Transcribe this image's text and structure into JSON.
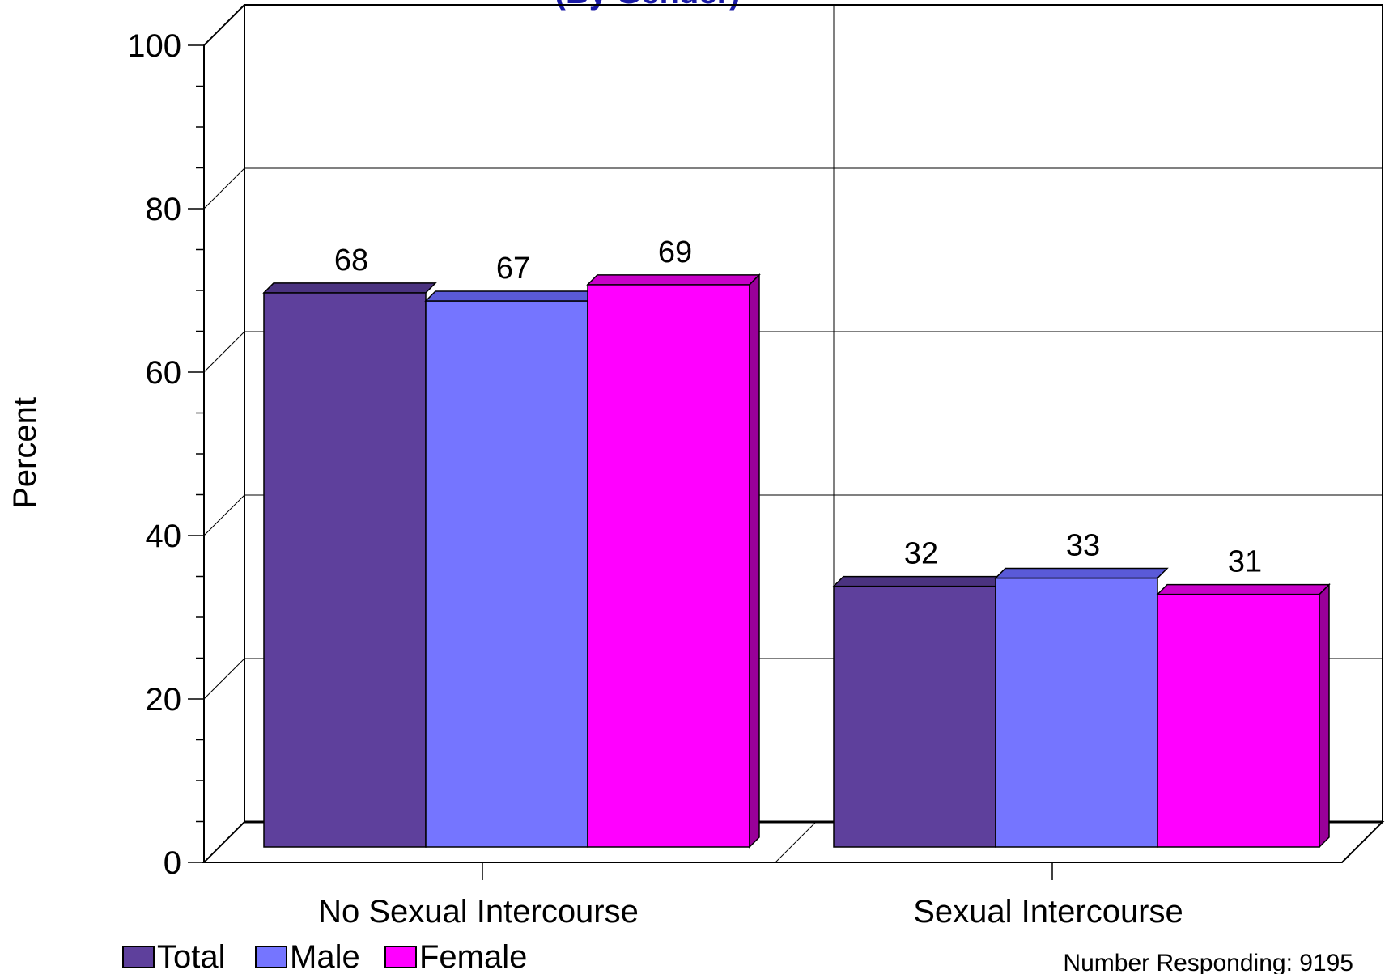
{
  "chart_data": {
    "type": "bar",
    "title": "(By Gender)",
    "ylabel": "Percent",
    "ylim": [
      0,
      100
    ],
    "yticks": [
      0,
      20,
      40,
      60,
      80,
      100
    ],
    "categories": [
      "No Sexual Intercourse",
      "Sexual Intercourse"
    ],
    "series": [
      {
        "name": "Total",
        "values": [
          68,
          32
        ],
        "color": "#5e409c",
        "top_color": "#4b3380",
        "side_color": "#3c2768"
      },
      {
        "name": "Male",
        "values": [
          67,
          33
        ],
        "color": "#7575ff",
        "top_color": "#5a5ad8",
        "side_color": "#4848b8"
      },
      {
        "name": "Female",
        "values": [
          69,
          31
        ],
        "color": "#ff00ff",
        "top_color": "#c800c8",
        "side_color": "#990099"
      }
    ],
    "grid": true,
    "legend_position": "bottom-left",
    "footnote": "Number Responding: 9195"
  }
}
